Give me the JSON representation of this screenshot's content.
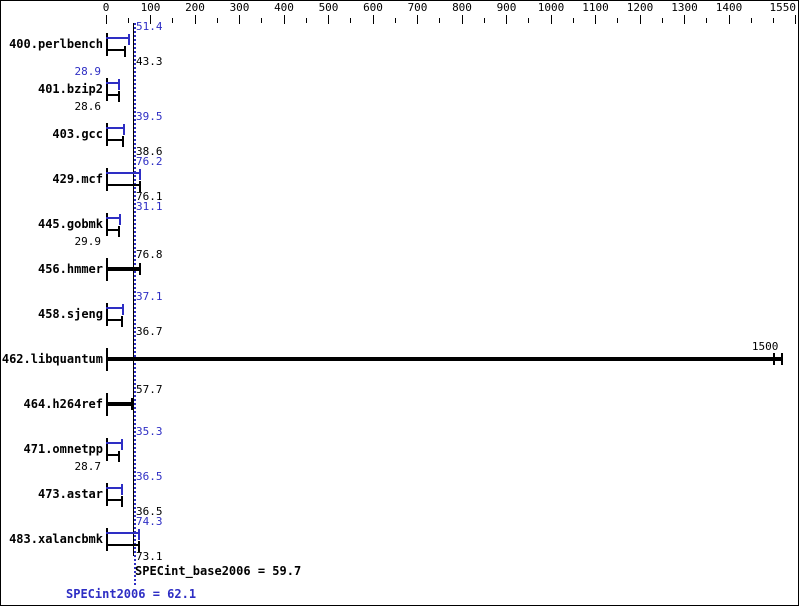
{
  "chart_data": {
    "type": "bar",
    "orientation": "horizontal",
    "title": "",
    "xlabel": "",
    "ylabel": "",
    "axis": {
      "min": 0,
      "max": 1550,
      "major_ticks": [
        0,
        100,
        200,
        300,
        400,
        500,
        600,
        700,
        800,
        900,
        1000,
        1100,
        1200,
        1300,
        1400,
        1550
      ],
      "minor_ticks": [
        50,
        150,
        250,
        350,
        450,
        550,
        650,
        750,
        850,
        950,
        1050,
        1150,
        1250,
        1350,
        1450,
        1500
      ]
    },
    "colors": {
      "peak": "#2e2ec4",
      "base": "#000000",
      "background": "#ffffff",
      "border": "#000000"
    },
    "categories": [
      "400.perlbench",
      "401.bzip2",
      "403.gcc",
      "429.mcf",
      "445.gobmk",
      "456.hmmer",
      "458.sjeng",
      "462.libquantum",
      "464.h264ref",
      "471.omnetpp",
      "473.astar",
      "483.xalancbmk"
    ],
    "series": [
      {
        "name": "peak (SPECint2006, blue)",
        "values": [
          51.4,
          28.9,
          39.5,
          76.2,
          31.1,
          76.8,
          37.1,
          1500,
          57.7,
          35.3,
          36.5,
          74.3
        ]
      },
      {
        "name": "base (SPECint_base2006, black)",
        "values": [
          43.3,
          28.6,
          38.6,
          76.1,
          29.9,
          76.8,
          36.7,
          1500,
          57.7,
          28.7,
          36.5,
          73.1
        ]
      }
    ],
    "rows": [
      {
        "name": "400.perlbench",
        "style": "double",
        "peak": {
          "value": 51.4,
          "label": "51.4",
          "label_side": "right"
        },
        "base": {
          "value": 43.3,
          "label": "43.3",
          "label_side": "right"
        }
      },
      {
        "name": "401.bzip2",
        "style": "double",
        "peak": {
          "value": 28.9,
          "label": "28.9",
          "label_side": "left"
        },
        "base": {
          "value": 28.6,
          "label": "28.6",
          "label_side": "left"
        }
      },
      {
        "name": "403.gcc",
        "style": "double",
        "peak": {
          "value": 39.5,
          "label": "39.5",
          "label_side": "right"
        },
        "base": {
          "value": 38.6,
          "label": "38.6",
          "label_side": "right"
        }
      },
      {
        "name": "429.mcf",
        "style": "double",
        "peak": {
          "value": 76.2,
          "label": "76.2",
          "label_side": "right"
        },
        "base": {
          "value": 76.1,
          "label": "76.1",
          "label_side": "right"
        }
      },
      {
        "name": "445.gobmk",
        "style": "double",
        "peak": {
          "value": 31.1,
          "label": "31.1",
          "label_side": "right"
        },
        "base": {
          "value": 29.9,
          "label": "29.9",
          "label_side": "left"
        }
      },
      {
        "name": "456.hmmer",
        "style": "single",
        "value": 76.8,
        "label": "76.8",
        "label_side": "right",
        "caps": [
          76.8
        ]
      },
      {
        "name": "458.sjeng",
        "style": "double",
        "peak": {
          "value": 37.1,
          "label": "37.1",
          "label_side": "right"
        },
        "base": {
          "value": 36.7,
          "label": "36.7",
          "label_side": "right"
        }
      },
      {
        "name": "462.libquantum",
        "style": "single",
        "value": 1500,
        "label": "1500",
        "label_side": "bar-end",
        "caps": [
          1500,
          1520
        ]
      },
      {
        "name": "464.h264ref",
        "style": "single",
        "value": 57.7,
        "label": "57.7",
        "label_side": "right",
        "caps": [
          57.7
        ]
      },
      {
        "name": "471.omnetpp",
        "style": "double",
        "peak": {
          "value": 35.3,
          "label": "35.3",
          "label_side": "right"
        },
        "base": {
          "value": 28.7,
          "label": "28.7",
          "label_side": "left"
        }
      },
      {
        "name": "473.astar",
        "style": "double",
        "peak": {
          "value": 36.5,
          "label": "36.5",
          "label_side": "right"
        },
        "base": {
          "value": 36.5,
          "label": "36.5",
          "label_side": "right"
        }
      },
      {
        "name": "483.xalancbmk",
        "style": "double",
        "peak": {
          "value": 74.3,
          "label": "74.3",
          "label_side": "right"
        },
        "base": {
          "value": 73.1,
          "label": "73.1",
          "label_side": "right"
        }
      }
    ],
    "mean_lines": {
      "base_value": 59.7,
      "peak_value": 62.1
    },
    "summary": {
      "base_text": "SPECint_base2006 = 59.7",
      "peak_text": "SPECint2006 = 62.1"
    },
    "legend_position": "none",
    "grid": false
  }
}
